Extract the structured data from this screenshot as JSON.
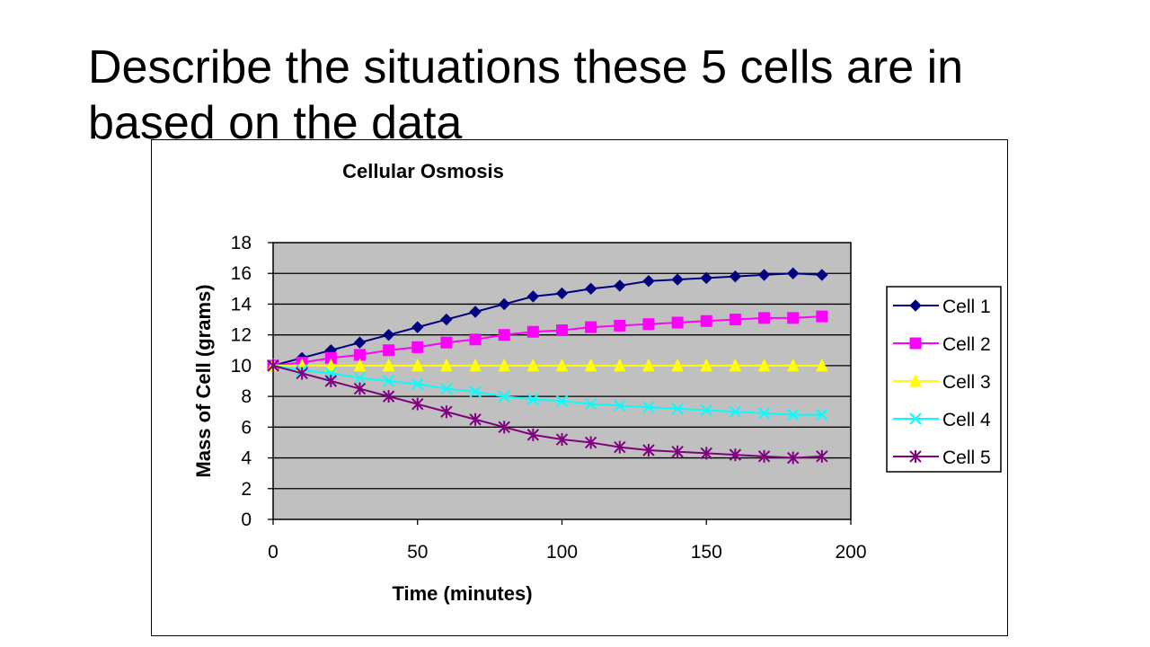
{
  "slide": {
    "title": "Describe the situations these 5 cells are in based on the data"
  },
  "chart_data": {
    "type": "line",
    "title": "Cellular Osmosis",
    "xlabel": "Time (minutes)",
    "ylabel": "Mass of Cell (grams)",
    "xlim": [
      0,
      200
    ],
    "ylim": [
      0,
      18
    ],
    "xticks": [
      0,
      50,
      100,
      150,
      200
    ],
    "yticks": [
      0,
      2,
      4,
      6,
      8,
      10,
      12,
      14,
      16,
      18
    ],
    "grid": true,
    "plot_background": "#C0C0C0",
    "legend_position": "right",
    "x": [
      0,
      10,
      20,
      30,
      40,
      50,
      60,
      70,
      80,
      90,
      100,
      110,
      120,
      130,
      140,
      150,
      160,
      170,
      180,
      190
    ],
    "series": [
      {
        "name": "Cell 1",
        "color": "#000080",
        "marker": "diamond",
        "values": [
          10,
          10.5,
          11,
          11.5,
          12,
          12.5,
          13,
          13.5,
          14,
          14.5,
          14.7,
          15,
          15.2,
          15.5,
          15.6,
          15.7,
          15.8,
          15.9,
          16,
          15.9
        ]
      },
      {
        "name": "Cell 2",
        "color": "#FF00FF",
        "marker": "square",
        "values": [
          10,
          10.2,
          10.5,
          10.7,
          11,
          11.2,
          11.5,
          11.7,
          12,
          12.2,
          12.3,
          12.5,
          12.6,
          12.7,
          12.8,
          12.9,
          13,
          13.1,
          13.1,
          13.2
        ]
      },
      {
        "name": "Cell 3",
        "color": "#FFFF00",
        "marker": "triangle",
        "values": [
          10,
          10,
          10,
          10,
          10,
          10,
          10,
          10,
          10,
          10,
          10,
          10,
          10,
          10,
          10,
          10,
          10,
          10,
          10,
          10
        ]
      },
      {
        "name": "Cell 4",
        "color": "#00FFFF",
        "marker": "x",
        "values": [
          10,
          9.7,
          9.5,
          9.2,
          9,
          8.8,
          8.5,
          8.3,
          8,
          7.8,
          7.7,
          7.5,
          7.4,
          7.3,
          7.2,
          7.1,
          7,
          6.9,
          6.8,
          6.8
        ]
      },
      {
        "name": "Cell 5",
        "color": "#800080",
        "marker": "star",
        "values": [
          10,
          9.5,
          9,
          8.5,
          8,
          7.5,
          7,
          6.5,
          6,
          5.5,
          5.2,
          5,
          4.7,
          4.5,
          4.4,
          4.3,
          4.2,
          4.1,
          4,
          4.1
        ]
      }
    ]
  }
}
